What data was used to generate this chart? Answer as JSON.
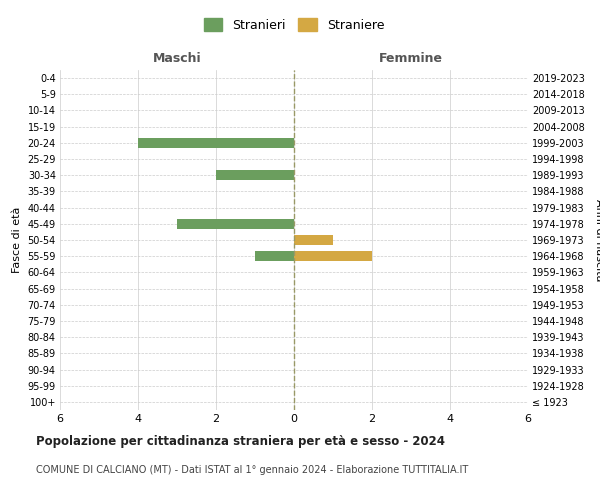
{
  "age_groups": [
    "100+",
    "95-99",
    "90-94",
    "85-89",
    "80-84",
    "75-79",
    "70-74",
    "65-69",
    "60-64",
    "55-59",
    "50-54",
    "45-49",
    "40-44",
    "35-39",
    "30-34",
    "25-29",
    "20-24",
    "15-19",
    "10-14",
    "5-9",
    "0-4"
  ],
  "birth_years": [
    "≤ 1923",
    "1924-1928",
    "1929-1933",
    "1934-1938",
    "1939-1943",
    "1944-1948",
    "1949-1953",
    "1954-1958",
    "1959-1963",
    "1964-1968",
    "1969-1973",
    "1974-1978",
    "1979-1983",
    "1984-1988",
    "1989-1993",
    "1994-1998",
    "1999-2003",
    "2004-2008",
    "2009-2013",
    "2014-2018",
    "2019-2023"
  ],
  "stranieri_maschi": [
    0,
    0,
    0,
    0,
    0,
    0,
    0,
    0,
    0,
    1,
    0,
    3,
    0,
    0,
    2,
    0,
    4,
    0,
    0,
    0,
    0
  ],
  "straniere_femmine": [
    0,
    0,
    0,
    0,
    0,
    0,
    0,
    0,
    0,
    2,
    1,
    0,
    0,
    0,
    0,
    0,
    0,
    0,
    0,
    0,
    0
  ],
  "color_stranieri": "#6b9e5e",
  "color_straniere": "#d4a843",
  "xlim": 6,
  "title": "Popolazione per cittadinanza straniera per età e sesso - 2024",
  "subtitle": "COMUNE DI CALCIANO (MT) - Dati ISTAT al 1° gennaio 2024 - Elaborazione TUTTITALIA.IT",
  "ylabel_left": "Fasce di età",
  "ylabel_right": "Anni di nascita",
  "header_left": "Maschi",
  "header_right": "Femmine",
  "legend_stranieri": "Stranieri",
  "legend_straniere": "Straniere",
  "bg_color": "#ffffff",
  "grid_color": "#cccccc",
  "bar_height": 0.6
}
